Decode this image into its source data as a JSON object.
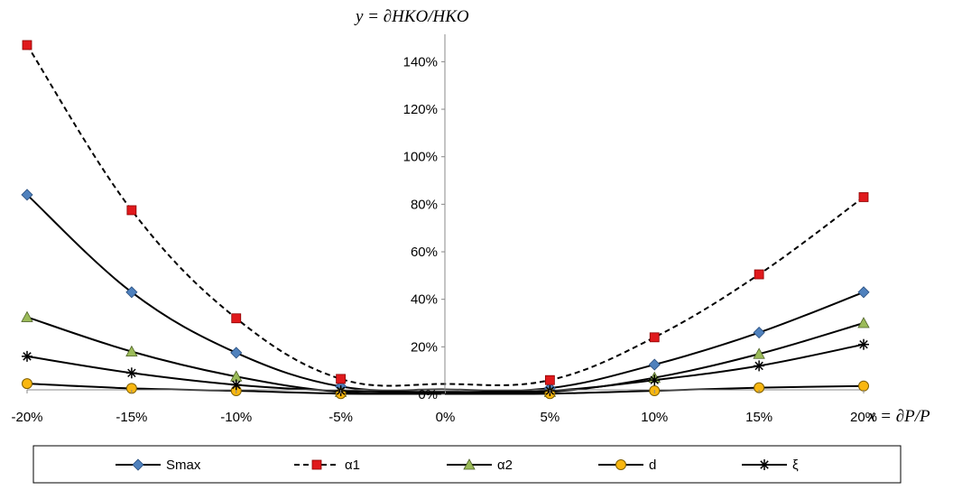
{
  "chart_data": {
    "type": "line",
    "title": "",
    "xlabel": "x = ∂P/P",
    "ylabel": "y = ∂HKO/HKO",
    "x": [
      -20,
      -15,
      -10,
      -5,
      0,
      5,
      10,
      15,
      20
    ],
    "x_tick_labels": [
      "-20%",
      "-15%",
      "-10%",
      "-5%",
      "0%",
      "5%",
      "10%",
      "15%",
      "20%"
    ],
    "xlim": [
      -20,
      20
    ],
    "ylim": [
      0,
      150
    ],
    "y_ticks": [
      0,
      20,
      40,
      60,
      80,
      100,
      120,
      140
    ],
    "y_tick_labels": [
      "0%",
      "20%",
      "40%",
      "60%",
      "80%",
      "100%",
      "120%",
      "140%"
    ],
    "grid": false,
    "legend_position": "bottom",
    "series": [
      {
        "name": "Smax",
        "marker": "diamond",
        "line": "solid",
        "color": "#4f81bd",
        "x": [
          -20,
          -15,
          -10,
          -5,
          5,
          10,
          15,
          20
        ],
        "values": [
          84,
          43,
          17.5,
          3.3,
          2.6,
          12.5,
          26,
          43
        ]
      },
      {
        "name": "α1",
        "marker": "square",
        "line": "dashed",
        "color": "#e0191c",
        "x": [
          -20,
          -15,
          -10,
          -5,
          5,
          10,
          15,
          20
        ],
        "values": [
          147,
          77.5,
          32,
          6.5,
          6,
          24,
          50.5,
          83
        ]
      },
      {
        "name": "α2",
        "marker": "triangle",
        "line": "solid",
        "color": "#9bbb59",
        "x": [
          -20,
          -15,
          -10,
          -5,
          5,
          10,
          15,
          20
        ],
        "values": [
          32.5,
          18,
          7.5,
          1,
          1,
          7,
          17,
          30
        ]
      },
      {
        "name": "d",
        "marker": "circle",
        "line": "solid",
        "color": "#f9b710",
        "x": [
          -20,
          -15,
          -10,
          -5,
          5,
          10,
          15,
          20
        ],
        "values": [
          4.5,
          2.5,
          1.5,
          0.3,
          0.3,
          1.5,
          2.8,
          3.5
        ]
      },
      {
        "name": "ξ",
        "marker": "asterisk",
        "line": "solid",
        "color": "#000000",
        "x": [
          -20,
          -15,
          -10,
          -5,
          5,
          10,
          15,
          20
        ],
        "values": [
          16,
          9,
          4,
          1.5,
          1.5,
          6,
          12,
          21
        ]
      }
    ]
  }
}
